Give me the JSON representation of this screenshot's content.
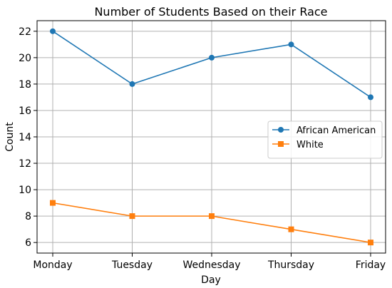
{
  "chart_data": {
    "type": "line",
    "title": "Number of Students Based on their Race",
    "xlabel": "Day",
    "ylabel": "Count",
    "categories": [
      "Monday",
      "Tuesday",
      "Wednesday",
      "Thursday",
      "Friday"
    ],
    "yticks": [
      6,
      8,
      10,
      12,
      14,
      16,
      18,
      20,
      22
    ],
    "ylim": [
      5.2,
      22.8
    ],
    "grid": true,
    "legend_position": "center-right",
    "series": [
      {
        "name": "African American",
        "values": [
          22,
          18,
          20,
          21,
          17
        ],
        "color": "#1f77b4",
        "marker": "circle"
      },
      {
        "name": "White",
        "values": [
          9,
          8,
          8,
          7,
          6
        ],
        "color": "#ff7f0e",
        "marker": "square"
      }
    ]
  }
}
